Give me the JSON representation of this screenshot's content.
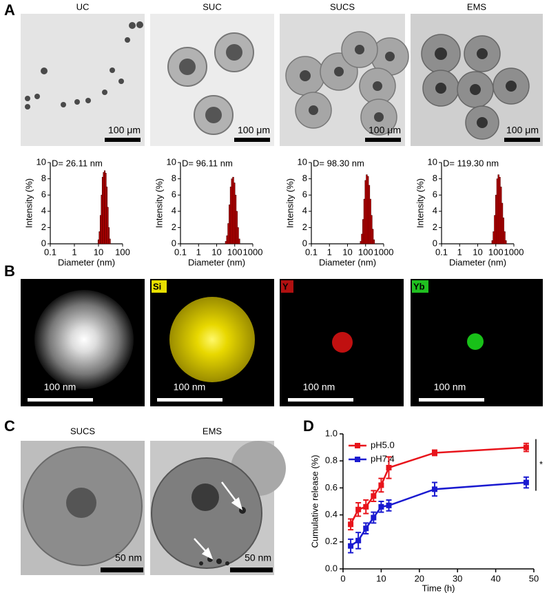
{
  "panel_labels": [
    "A",
    "B",
    "C",
    "D"
  ],
  "tem_images": [
    {
      "title": "UC",
      "scale": "100 μm"
    },
    {
      "title": "SUC",
      "scale": "100 μm"
    },
    {
      "title": "SUCS",
      "scale": "100 μm"
    },
    {
      "title": "EMS",
      "scale": "100 μm"
    }
  ],
  "eds_images": [
    {
      "scale": "100 nm"
    },
    {
      "element": "Si",
      "scale": "100 nm"
    },
    {
      "element": "Y",
      "scale": "100 nm"
    },
    {
      "element": "Yb",
      "scale": "100 nm"
    }
  ],
  "c_images": [
    {
      "title": "SUCS",
      "scale": "50 nm"
    },
    {
      "title": "EMS",
      "scale": "50 nm"
    }
  ],
  "chart_data": [
    {
      "type": "histogram",
      "annotation": "D= 26.11 nm",
      "xlabel": "Diameter (nm)",
      "ylabel": "Intensity (%)",
      "log_x": true,
      "color": "#cc0000",
      "xlim": [
        0.1,
        100
      ],
      "xticks": [
        0.1,
        1,
        10,
        100
      ],
      "ylim": [
        0,
        10
      ],
      "yticks": [
        0,
        2,
        4,
        6,
        8,
        10
      ],
      "bins": [
        9.5,
        10.5,
        11.6,
        12.8,
        14.1,
        15.6,
        17.2,
        19.0,
        21.0,
        23.2,
        25.6,
        28.3,
        31.3
      ],
      "counts": [
        0.5,
        1.5,
        3.5,
        6.0,
        8.2,
        8.8,
        9.0,
        8.7,
        7.0,
        4.5,
        2.0,
        0.6
      ]
    },
    {
      "type": "histogram",
      "annotation": "D= 96.11 nm",
      "xlabel": "Diameter (nm)",
      "ylabel": "Intensity (%)",
      "log_x": true,
      "color": "#cc0000",
      "xlim": [
        0.1,
        1000
      ],
      "xticks": [
        0.1,
        1,
        10,
        100,
        1000
      ],
      "ylim": [
        0,
        10
      ],
      "yticks": [
        0,
        2,
        4,
        6,
        8,
        10
      ],
      "bins": [
        30,
        35,
        41,
        48,
        56,
        65,
        76,
        89,
        104,
        121,
        141,
        165,
        193
      ],
      "counts": [
        0.3,
        1.0,
        2.5,
        4.8,
        7.0,
        8.0,
        8.2,
        7.5,
        6.0,
        4.0,
        2.0,
        0.6
      ]
    },
    {
      "type": "histogram",
      "annotation": "D= 98.30 nm",
      "xlabel": "Diameter (nm)",
      "ylabel": "Intensity (%)",
      "log_x": true,
      "color": "#cc0000",
      "xlim": [
        0.1,
        1000
      ],
      "xticks": [
        0.1,
        1,
        10,
        100,
        1000
      ],
      "ylim": [
        0,
        10
      ],
      "yticks": [
        0,
        2,
        4,
        6,
        8,
        10
      ],
      "bins": [
        50,
        58,
        68,
        79,
        92,
        107,
        125,
        146,
        170,
        198,
        231,
        269,
        314
      ],
      "counts": [
        0.3,
        1.2,
        3.0,
        5.5,
        7.8,
        8.5,
        8.3,
        7.2,
        5.5,
        3.5,
        1.8,
        0.5
      ]
    },
    {
      "type": "histogram",
      "annotation": "D= 119.30 nm",
      "xlabel": "Diameter (nm)",
      "ylabel": "Intensity (%)",
      "log_x": true,
      "color": "#cc0000",
      "xlim": [
        0.1,
        1000
      ],
      "xticks": [
        0.1,
        1,
        10,
        100,
        1000
      ],
      "ylim": [
        0,
        10
      ],
      "yticks": [
        0,
        2,
        4,
        6,
        8,
        10
      ],
      "bins": [
        60,
        70,
        82,
        96,
        112,
        131,
        153,
        179,
        209,
        244,
        285,
        333,
        389
      ],
      "counts": [
        0.4,
        1.5,
        3.5,
        6.0,
        8.0,
        8.5,
        8.2,
        7.0,
        5.0,
        3.2,
        1.5,
        0.4
      ]
    },
    {
      "type": "line",
      "xlabel": "Time (h)",
      "ylabel": "Cumulative release (%)",
      "annotation": "*",
      "legend": "upper left",
      "xlim": [
        0,
        50
      ],
      "xticks": [
        0,
        10,
        20,
        30,
        40,
        50
      ],
      "ylim": [
        0,
        1.0
      ],
      "yticks": [
        {
          "value": 0,
          "label": "0.0"
        },
        0.2,
        0.4,
        0.6,
        0.8,
        {
          "value": 1.0,
          "label": "1.0"
        }
      ],
      "x": [
        2,
        4,
        6,
        8,
        10,
        12,
        24,
        48
      ],
      "series": [
        {
          "name": "pH5.0",
          "color": "#e8141b",
          "values": [
            0.33,
            0.44,
            0.46,
            0.54,
            0.62,
            0.75,
            0.86,
            0.9
          ],
          "errors": [
            0.04,
            0.05,
            0.05,
            0.04,
            0.05,
            0.08,
            0.02,
            0.03
          ]
        },
        {
          "name": "pH7.4",
          "color": "#1a1ad0",
          "values": [
            0.17,
            0.21,
            0.3,
            0.38,
            0.46,
            0.47,
            0.59,
            0.64
          ],
          "errors": [
            0.05,
            0.06,
            0.04,
            0.04,
            0.04,
            0.04,
            0.05,
            0.04
          ]
        }
      ]
    }
  ]
}
